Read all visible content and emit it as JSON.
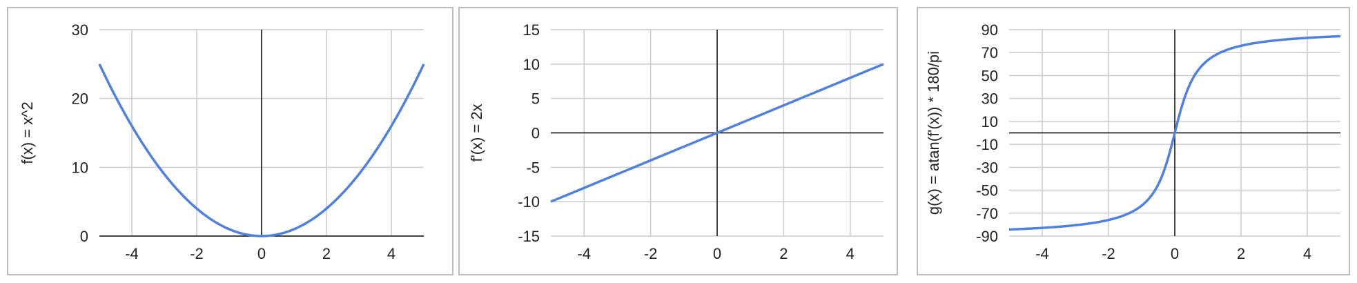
{
  "colors": {
    "line": "#4f80e1",
    "grid": "#cccccc",
    "axis": "#000000",
    "border": "#bdbdbd"
  },
  "chart_data": [
    {
      "type": "line",
      "ylabel": "f(x) = x^2",
      "xlim": [
        -5,
        5
      ],
      "ylim": [
        0,
        30
      ],
      "xticks": [
        -4,
        -2,
        0,
        2,
        4
      ],
      "yticks": [
        0,
        10,
        20,
        30
      ],
      "series": [
        {
          "fn": "x^2",
          "x": [
            -5,
            -4,
            -3,
            -2,
            -1,
            0,
            1,
            2,
            3,
            4,
            5
          ],
          "values": [
            25,
            16,
            9,
            4,
            1,
            0,
            1,
            4,
            9,
            16,
            25
          ]
        }
      ],
      "grid": true
    },
    {
      "type": "line",
      "ylabel": "f'(x) = 2x",
      "xlim": [
        -5,
        5
      ],
      "ylim": [
        -15,
        15
      ],
      "xticks": [
        -4,
        -2,
        0,
        2,
        4
      ],
      "yticks": [
        -15,
        -10,
        -5,
        0,
        5,
        10,
        15
      ],
      "series": [
        {
          "fn": "2x",
          "x": [
            -5,
            0,
            5
          ],
          "values": [
            -10,
            0,
            10
          ]
        }
      ],
      "grid": true
    },
    {
      "type": "line",
      "ylabel": "g(x) = atan(f'(x)) * 180/pi",
      "xlim": [
        -5,
        5
      ],
      "ylim": [
        -90,
        90
      ],
      "xticks": [
        -4,
        -2,
        0,
        2,
        4
      ],
      "yticks": [
        -90,
        -70,
        -50,
        -30,
        -10,
        10,
        30,
        50,
        70,
        90
      ],
      "series": [
        {
          "fn": "atan(2x)*180/pi",
          "x": [
            -5,
            -4,
            -3,
            -2,
            -1,
            -0.5,
            0,
            0.5,
            1,
            2,
            3,
            4,
            5
          ],
          "values": [
            -84.3,
            -82.9,
            -80.5,
            -76.0,
            -63.4,
            -45.0,
            0,
            45.0,
            63.4,
            76.0,
            80.5,
            82.9,
            84.3
          ]
        }
      ],
      "grid": true
    }
  ]
}
